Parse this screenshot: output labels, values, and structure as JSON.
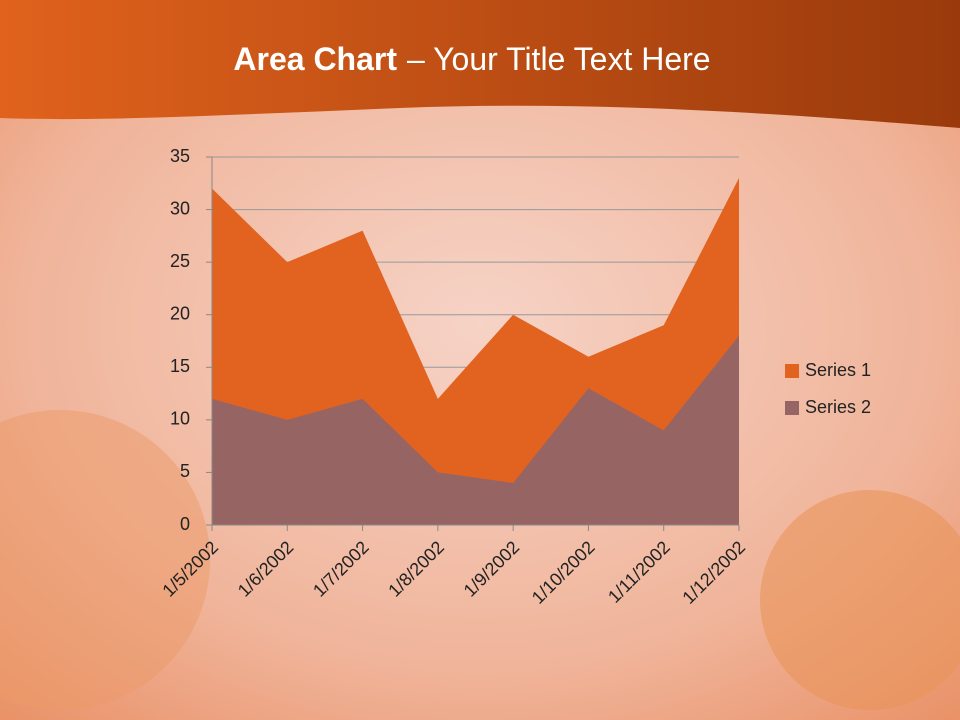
{
  "chart_data": {
    "type": "area",
    "title_parts": [
      "Area Chart",
      "– Your Title Text Here"
    ],
    "categories": [
      "1/5/2002",
      "1/6/2002",
      "1/7/2002",
      "1/8/2002",
      "1/9/2002",
      "1/10/2002",
      "1/11/2002",
      "1/12/2002"
    ],
    "series": [
      {
        "name": "Series 1",
        "color": "#e2621f",
        "values": [
          32,
          25,
          28,
          12,
          20,
          16,
          19,
          33
        ]
      },
      {
        "name": "Series 2",
        "color": "#976464",
        "values": [
          12,
          10,
          12,
          5,
          4,
          13,
          9,
          18
        ]
      }
    ],
    "ylim": [
      0,
      35
    ],
    "yticks": [
      0,
      5,
      10,
      15,
      20,
      25,
      30,
      35
    ],
    "grid": true,
    "legend": "right"
  }
}
